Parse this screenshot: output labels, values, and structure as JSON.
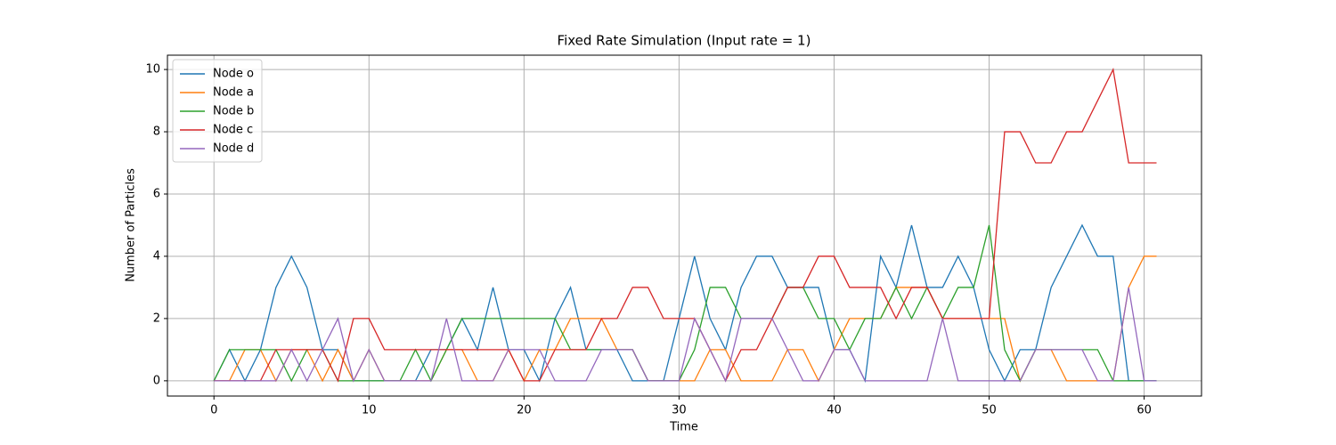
{
  "chart_data": {
    "type": "line",
    "title": "Fixed Rate Simulation (Input rate = 1)",
    "x_label": "Time",
    "y_label": "Number of Particles",
    "x": [
      0,
      1,
      2,
      3,
      4,
      5,
      6,
      7,
      8,
      9,
      10,
      11,
      12,
      13,
      14,
      15,
      16,
      17,
      18,
      19,
      20,
      21,
      22,
      23,
      24,
      25,
      26,
      27,
      28,
      29,
      30,
      31,
      32,
      33,
      34,
      35,
      36,
      37,
      38,
      39,
      40,
      41,
      42,
      43,
      44,
      45,
      46,
      47,
      48,
      49,
      50,
      51,
      52,
      53,
      54,
      55,
      56,
      57,
      58,
      59,
      60,
      60.8
    ],
    "series": [
      {
        "name": "Node o",
        "color": "#1f77b4",
        "values": [
          0,
          1,
          0,
          1,
          3,
          4,
          3,
          1,
          1,
          0,
          0,
          0,
          0,
          0,
          1,
          1,
          2,
          1,
          3,
          1,
          1,
          0,
          2,
          3,
          1,
          1,
          1,
          0,
          0,
          0,
          2,
          4,
          2,
          1,
          3,
          4,
          4,
          3,
          3,
          3,
          1,
          1,
          0,
          4,
          3,
          5,
          3,
          3,
          4,
          3,
          1,
          0,
          1,
          1,
          3,
          4,
          5,
          4,
          4,
          0,
          0,
          0
        ]
      },
      {
        "name": "Node a",
        "color": "#ff7f0e",
        "values": [
          0,
          0,
          1,
          1,
          0,
          1,
          1,
          0,
          1,
          0,
          1,
          0,
          0,
          0,
          0,
          1,
          1,
          0,
          0,
          1,
          0,
          1,
          1,
          2,
          2,
          2,
          1,
          1,
          0,
          0,
          0,
          0,
          1,
          1,
          0,
          0,
          0,
          1,
          1,
          0,
          1,
          2,
          2,
          2,
          3,
          3,
          3,
          2,
          2,
          2,
          2,
          2,
          0,
          1,
          1,
          0,
          0,
          0,
          0,
          3,
          4,
          4
        ]
      },
      {
        "name": "Node b",
        "color": "#2ca02c",
        "values": [
          0,
          1,
          1,
          1,
          1,
          0,
          1,
          1,
          0,
          0,
          0,
          0,
          0,
          1,
          0,
          1,
          2,
          2,
          2,
          2,
          2,
          2,
          2,
          1,
          1,
          1,
          1,
          1,
          0,
          0,
          0,
          1,
          3,
          3,
          2,
          2,
          2,
          3,
          3,
          2,
          2,
          1,
          2,
          2,
          3,
          2,
          3,
          2,
          3,
          3,
          5,
          1,
          0,
          1,
          1,
          1,
          1,
          1,
          0,
          0,
          0,
          0
        ]
      },
      {
        "name": "Node c",
        "color": "#d62728",
        "values": [
          0,
          0,
          0,
          0,
          1,
          1,
          1,
          1,
          0,
          2,
          2,
          1,
          1,
          1,
          1,
          1,
          1,
          1,
          1,
          1,
          0,
          0,
          1,
          1,
          1,
          2,
          2,
          3,
          3,
          2,
          2,
          2,
          1,
          0,
          1,
          1,
          2,
          3,
          3,
          4,
          4,
          3,
          3,
          3,
          2,
          3,
          3,
          2,
          2,
          2,
          2,
          8,
          8,
          7,
          7,
          8,
          8,
          9,
          10,
          7,
          7,
          7
        ]
      },
      {
        "name": "Node d",
        "color": "#9467bd",
        "values": [
          0,
          0,
          0,
          0,
          0,
          1,
          0,
          1,
          2,
          0,
          1,
          0,
          0,
          0,
          0,
          2,
          0,
          0,
          0,
          1,
          1,
          1,
          0,
          0,
          0,
          1,
          1,
          1,
          0,
          0,
          0,
          2,
          1,
          0,
          2,
          2,
          2,
          1,
          0,
          0,
          1,
          1,
          0,
          0,
          0,
          0,
          0,
          2,
          0,
          0,
          0,
          0,
          0,
          1,
          1,
          1,
          1,
          0,
          0,
          3,
          0,
          0
        ]
      }
    ],
    "xlim": [
      -3,
      63.7
    ],
    "ylim": [
      -0.49,
      10.46
    ],
    "xticks": [
      0,
      10,
      20,
      30,
      40,
      50,
      60
    ],
    "yticks": [
      0,
      2,
      4,
      6,
      8,
      10
    ],
    "grid": true,
    "legend": "upper-left"
  }
}
